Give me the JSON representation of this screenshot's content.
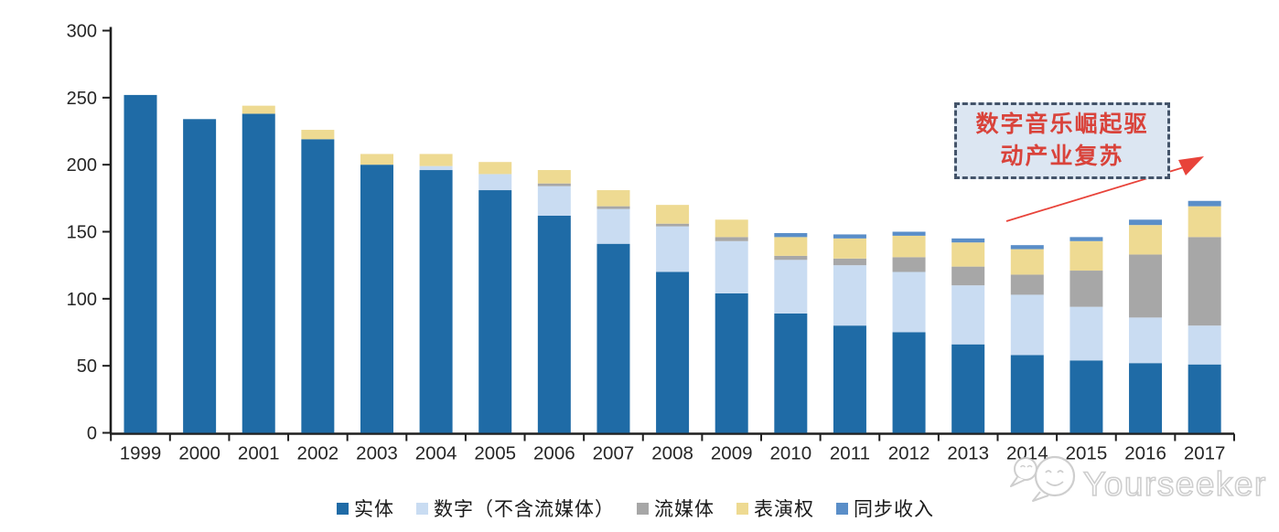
{
  "page": {
    "background": "#ffffff"
  },
  "chart_data": {
    "type": "bar",
    "stacked": true,
    "title": "",
    "categories": [
      "1999",
      "2000",
      "2001",
      "2002",
      "2003",
      "2004",
      "2005",
      "2006",
      "2007",
      "2008",
      "2009",
      "2010",
      "2011",
      "2012",
      "2013",
      "2014",
      "2015",
      "2016",
      "2017"
    ],
    "series": [
      {
        "name": "实体",
        "color": "#1f6ba6",
        "values": [
          252,
          234,
          238,
          219,
          200,
          196,
          181,
          162,
          141,
          120,
          104,
          89,
          80,
          75,
          66,
          58,
          54,
          52,
          51
        ]
      },
      {
        "name": "数字（不含流媒体）",
        "color": "#c9dcf2",
        "values": [
          0,
          0,
          0,
          0,
          0,
          3,
          12,
          22,
          26,
          34,
          39,
          40,
          45,
          45,
          44,
          45,
          40,
          34,
          29
        ]
      },
      {
        "name": "流媒体",
        "color": "#a7a7a7",
        "values": [
          0,
          0,
          0,
          0,
          0,
          0,
          0,
          2,
          2,
          2,
          3,
          3,
          5,
          11,
          14,
          15,
          27,
          47,
          66
        ]
      },
      {
        "name": "表演权",
        "color": "#eeda92",
        "values": [
          0,
          0,
          6,
          7,
          8,
          9,
          9,
          10,
          12,
          14,
          13,
          14,
          15,
          16,
          18,
          19,
          22,
          22,
          23
        ]
      },
      {
        "name": "同步收入",
        "color": "#5a8ec8",
        "values": [
          0,
          0,
          0,
          0,
          0,
          0,
          0,
          0,
          0,
          0,
          0,
          3,
          3,
          3,
          3,
          3,
          3,
          4,
          4
        ]
      }
    ],
    "ylim": [
      0,
      300
    ],
    "yticks": [
      0,
      50,
      100,
      150,
      200,
      250,
      300
    ],
    "grid": false,
    "legend_position": "bottom"
  },
  "axis": {
    "color": "#1f1f1f",
    "label_color": "#262626"
  },
  "annotation": {
    "line1": "数字音乐崛起驱",
    "line2": "动产业复苏",
    "text_color": "#d9433b",
    "box_fill": "#dce6f2",
    "border_color": "#44546a",
    "arrow_color": "#e8433a"
  },
  "watermark": {
    "text": "Yourseeker",
    "color": "#c9c9c9"
  }
}
